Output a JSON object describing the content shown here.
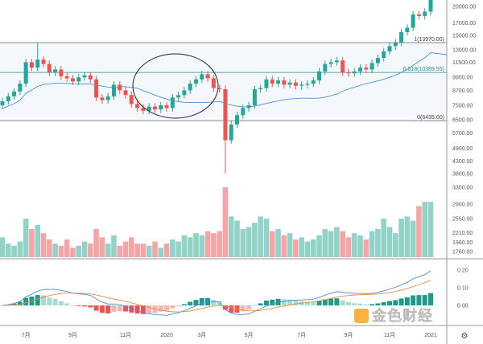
{
  "chart_data": {
    "type": "candlestick",
    "title": "",
    "price_axis_ticks": [
      "20000.00",
      "17000.00",
      "15000.00",
      "13000.00",
      "11500.00",
      "9900.00",
      "8700.00",
      "7500.00",
      "6500.00",
      "5700.00",
      "4900.00",
      "4300.00",
      "3800.00"
    ],
    "price_axis_values": [
      20000,
      17000,
      15000,
      13000,
      11500,
      9900,
      8700,
      7500,
      6500,
      5700,
      4900,
      4300,
      3800
    ],
    "volume_axis_ticks": [
      "3300.00",
      "2900.00",
      "2550.00",
      "2210.00",
      "1980.00",
      "1760.00"
    ],
    "volume_axis_values": [
      3300,
      2900,
      2550,
      2210,
      1980,
      1760
    ],
    "macd_axis_ticks": [
      "0.20",
      "0.10",
      "0.00"
    ],
    "macd_axis_values": [
      0.2,
      0.1,
      0.0
    ],
    "x_ticks": [
      "7月",
      "9月",
      "11月",
      "2020",
      "3月",
      "5月",
      "7月",
      "9月",
      "11月",
      "2021"
    ],
    "x_tick_index": [
      4,
      12,
      21,
      28,
      34,
      42,
      51,
      59,
      66,
      73
    ],
    "first_open": 7500,
    "closes": [
      7800,
      8200,
      8600,
      9300,
      11500,
      10900,
      11800,
      11300,
      10400,
      10700,
      10000,
      9800,
      9500,
      9900,
      10100,
      9700,
      8100,
      7900,
      8200,
      9200,
      8700,
      8300,
      7600,
      7300,
      7100,
      7400,
      7200,
      7500,
      7300,
      8100,
      8300,
      8700,
      9300,
      9700,
      10200,
      9800,
      8900,
      8800,
      5300,
      6200,
      6800,
      7300,
      7500,
      8800,
      8900,
      9700,
      9300,
      9600,
      9200,
      9400,
      9100,
      9200,
      9300,
      9600,
      10500,
      11300,
      11500,
      11700,
      10400,
      10300,
      10500,
      10900,
      10700,
      11400,
      12000,
      12800,
      13500,
      14000,
      15500,
      16200,
      18500,
      18200,
      19000,
      23000
    ],
    "wick_overrides": [
      {
        "index": 6,
        "high": 13900
      },
      {
        "index": 38,
        "low": 3800
      }
    ],
    "volumes": [
      2100,
      1950,
      1900,
      2000,
      2550,
      2300,
      2400,
      2200,
      2050,
      1950,
      1900,
      2050,
      1850,
      1900,
      2000,
      1950,
      2300,
      2100,
      1950,
      2150,
      1900,
      2000,
      2100,
      1950,
      1950,
      1900,
      2000,
      1850,
      1950,
      2050,
      2000,
      2150,
      2100,
      2200,
      2150,
      2250,
      2200,
      2250,
      3300,
      2600,
      2500,
      2300,
      2350,
      2450,
      2600,
      2550,
      2250,
      2300,
      2150,
      2200,
      2050,
      2100,
      2000,
      2050,
      2150,
      2300,
      2250,
      2350,
      2250,
      2100,
      2200,
      2150,
      2050,
      2250,
      2300,
      2550,
      2350,
      2200,
      2550,
      2600,
      2500,
      2850,
      2950,
      2950
    ],
    "fib_levels": [
      {
        "label": "1(13970.00)",
        "value": 13970
      },
      {
        "label": "0.618(10389.55)",
        "value": 10389.55
      },
      {
        "label": "0(6435.00)",
        "value": 6435
      }
    ],
    "ma_period": 20,
    "annotation": "ellipse highlighting late-2019 consolidation",
    "colors": {
      "up": "#26a69a",
      "down": "#ef5350",
      "vol_up": "#93d2c8",
      "vol_down": "#f5a5a5",
      "ma": "#4a90d9",
      "signal": "#f08a3c"
    }
  },
  "watermark": "金色财经"
}
